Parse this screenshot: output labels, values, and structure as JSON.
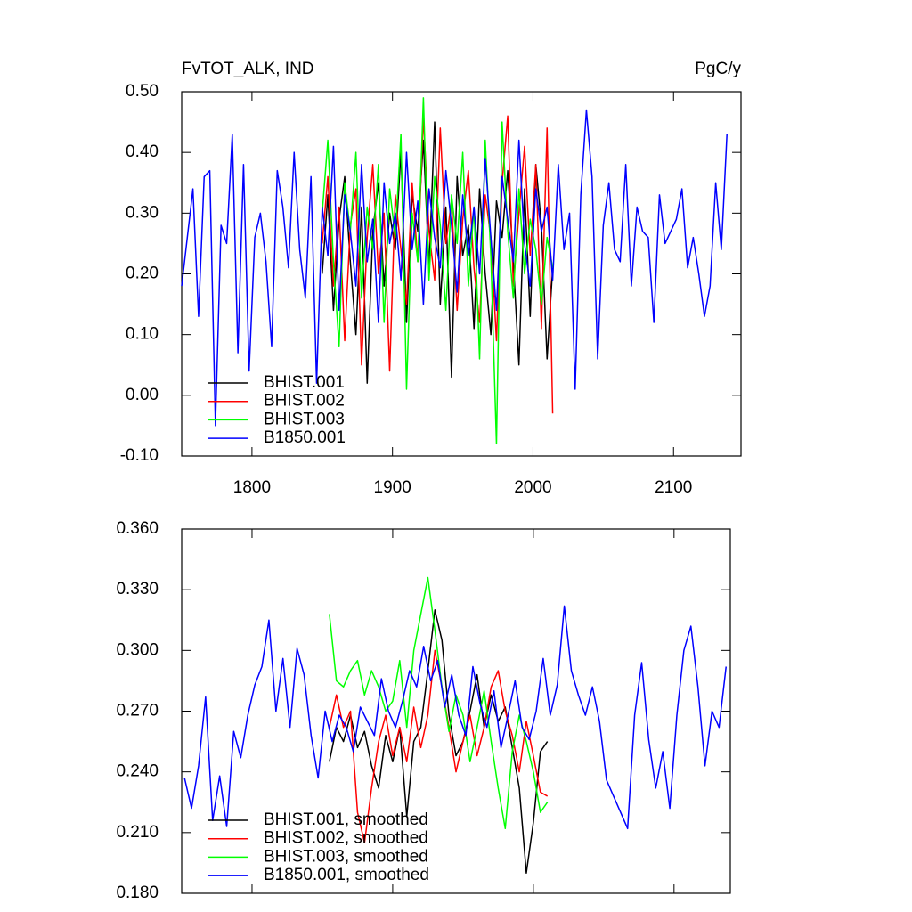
{
  "chart_data": [
    {
      "type": "line",
      "title": "FvTOT_ALK, IND",
      "units_label": "PgC/y",
      "xlim": [
        1750,
        2148
      ],
      "xticks": [
        1800,
        1900,
        2000,
        2100
      ],
      "show_xtick_labels": true,
      "ylim": [
        -0.1,
        0.5
      ],
      "yticks": [
        {
          "value": -0.1,
          "label": "-0.10"
        },
        {
          "value": 0,
          "label": "0.00"
        },
        {
          "value": 0.1,
          "label": "0.10"
        },
        {
          "value": 0.2,
          "label": "0.20"
        },
        {
          "value": 0.3,
          "label": "0.30"
        },
        {
          "value": 0.4,
          "label": "0.40"
        },
        {
          "value": 0.5,
          "label": "0.50"
        }
      ],
      "legend": "lower left",
      "series": [
        {
          "name": "BHIST.001",
          "color": "#000000",
          "x": [
            1850,
            1854,
            1858,
            1862,
            1866,
            1870,
            1874,
            1878,
            1882,
            1886,
            1890,
            1894,
            1898,
            1902,
            1906,
            1910,
            1914,
            1918,
            1922,
            1926,
            1930,
            1934,
            1938,
            1942,
            1946,
            1950,
            1954,
            1958,
            1962,
            1966,
            1970,
            1974,
            1978,
            1982,
            1986,
            1990,
            1994,
            1998,
            2002,
            2006,
            2010,
            2014
          ],
          "values": [
            0.2,
            0.33,
            0.14,
            0.29,
            0.36,
            0.22,
            0.1,
            0.31,
            0.02,
            0.27,
            0.35,
            0.18,
            0.3,
            0.24,
            0.4,
            0.12,
            0.33,
            0.27,
            0.42,
            0.21,
            0.45,
            0.15,
            0.31,
            0.03,
            0.36,
            0.23,
            0.28,
            0.11,
            0.34,
            0.2,
            0.1,
            0.32,
            0.26,
            0.37,
            0.22,
            0.05,
            0.34,
            0.13,
            0.38,
            0.28,
            0.06,
            0.21
          ]
        },
        {
          "name": "BHIST.002",
          "color": "#ff0000",
          "x": [
            1850,
            1854,
            1858,
            1862,
            1866,
            1870,
            1874,
            1878,
            1882,
            1886,
            1890,
            1894,
            1898,
            1902,
            1906,
            1910,
            1914,
            1918,
            1922,
            1926,
            1930,
            1934,
            1938,
            1942,
            1946,
            1950,
            1954,
            1958,
            1962,
            1966,
            1970,
            1974,
            1978,
            1982,
            1986,
            1990,
            1994,
            1998,
            2002,
            2006,
            2010,
            2014
          ],
          "values": [
            0.25,
            0.36,
            0.18,
            0.31,
            0.09,
            0.28,
            0.34,
            0.05,
            0.26,
            0.38,
            0.2,
            0.3,
            0.04,
            0.33,
            0.24,
            0.15,
            0.35,
            0.22,
            0.46,
            0.27,
            0.19,
            0.44,
            0.25,
            0.32,
            0.14,
            0.29,
            0.37,
            0.21,
            0.12,
            0.33,
            0.26,
            0.09,
            0.35,
            0.46,
            0.18,
            0.3,
            0.41,
            0.23,
            0.38,
            0.11,
            0.44,
            -0.03
          ]
        },
        {
          "name": "BHIST.003",
          "color": "#00ff00",
          "x": [
            1850,
            1854,
            1858,
            1862,
            1866,
            1870,
            1874,
            1878,
            1882,
            1886,
            1890,
            1894,
            1898,
            1902,
            1906,
            1910,
            1914,
            1918,
            1922,
            1926,
            1930,
            1934,
            1938,
            1942,
            1946,
            1950,
            1954,
            1958,
            1962,
            1966,
            1970,
            1974,
            1978,
            1982,
            1986,
            1990,
            1994,
            1998,
            2002,
            2006,
            2010,
            2014
          ],
          "values": [
            0.3,
            0.42,
            0.22,
            0.08,
            0.35,
            0.27,
            0.4,
            0.16,
            0.31,
            0.24,
            0.38,
            0.12,
            0.34,
            0.26,
            0.43,
            0.01,
            0.3,
            0.22,
            0.49,
            0.19,
            0.36,
            0.28,
            0.14,
            0.33,
            0.25,
            0.4,
            0.18,
            0.31,
            0.06,
            0.42,
            0.23,
            -0.08,
            0.45,
            0.27,
            0.16,
            0.34,
            0.2,
            0.29,
            0.24,
            0.15,
            0.26,
            0.21
          ]
        },
        {
          "name": "B1850.001",
          "color": "#0000ff",
          "x": [
            1750,
            1754,
            1758,
            1762,
            1766,
            1770,
            1774,
            1778,
            1782,
            1786,
            1790,
            1794,
            1798,
            1802,
            1806,
            1810,
            1814,
            1818,
            1822,
            1826,
            1830,
            1834,
            1838,
            1842,
            1846,
            1850,
            1854,
            1858,
            1862,
            1866,
            1870,
            1874,
            1878,
            1882,
            1886,
            1890,
            1894,
            1898,
            1902,
            1906,
            1910,
            1914,
            1918,
            1922,
            1926,
            1930,
            1934,
            1938,
            1942,
            1946,
            1950,
            1954,
            1958,
            1962,
            1966,
            1970,
            1974,
            1978,
            1982,
            1986,
            1990,
            1994,
            1998,
            2002,
            2006,
            2010,
            2014,
            2018,
            2022,
            2026,
            2030,
            2034,
            2038,
            2042,
            2046,
            2050,
            2054,
            2058,
            2062,
            2066,
            2070,
            2074,
            2078,
            2082,
            2086,
            2090,
            2094,
            2098,
            2102,
            2106,
            2110,
            2114,
            2118,
            2122,
            2126,
            2130,
            2134,
            2138
          ],
          "values": [
            0.18,
            0.26,
            0.34,
            0.13,
            0.36,
            0.37,
            -0.05,
            0.28,
            0.25,
            0.43,
            0.07,
            0.38,
            0.04,
            0.26,
            0.3,
            0.22,
            0.08,
            0.37,
            0.31,
            0.21,
            0.4,
            0.24,
            0.16,
            0.36,
            0.02,
            0.31,
            0.23,
            0.41,
            0.14,
            0.33,
            0.27,
            0.18,
            0.38,
            0.22,
            0.29,
            0.12,
            0.35,
            0.25,
            0.3,
            0.19,
            0.4,
            0.24,
            0.32,
            0.15,
            0.34,
            0.26,
            0.21,
            0.37,
            0.28,
            0.17,
            0.33,
            0.23,
            0.31,
            0.2,
            0.39,
            0.26,
            0.14,
            0.36,
            0.29,
            0.22,
            0.42,
            0.25,
            0.18,
            0.34,
            0.27,
            0.31,
            0.19,
            0.38,
            0.24,
            0.3,
            0.01,
            0.33,
            0.47,
            0.36,
            0.06,
            0.28,
            0.35,
            0.24,
            0.22,
            0.38,
            0.18,
            0.31,
            0.27,
            0.26,
            0.12,
            0.33,
            0.25,
            0.27,
            0.29,
            0.34,
            0.21,
            0.26,
            0.2,
            0.13,
            0.18,
            0.35,
            0.24,
            0.43
          ]
        }
      ]
    },
    {
      "type": "line",
      "xlim": [
        1750,
        2140
      ],
      "xticks": [
        1800,
        1900,
        2000,
        2100
      ],
      "show_xtick_labels": false,
      "ylim": [
        0.18,
        0.36
      ],
      "yticks": [
        {
          "value": 0.18,
          "label": "0.180"
        },
        {
          "value": 0.21,
          "label": "0.210"
        },
        {
          "value": 0.24,
          "label": "0.240"
        },
        {
          "value": 0.27,
          "label": "0.270"
        },
        {
          "value": 0.3,
          "label": "0.300"
        },
        {
          "value": 0.33,
          "label": "0.330"
        },
        {
          "value": 0.36,
          "label": "0.360"
        }
      ],
      "legend": "lower left",
      "series": [
        {
          "name": "BHIST.001, smoothed",
          "color": "#000000",
          "x": [
            1855,
            1860,
            1865,
            1870,
            1875,
            1880,
            1885,
            1890,
            1895,
            1900,
            1905,
            1910,
            1915,
            1920,
            1925,
            1930,
            1935,
            1940,
            1945,
            1950,
            1955,
            1960,
            1965,
            1970,
            1975,
            1980,
            1985,
            1990,
            1995,
            2000,
            2005,
            2010
          ],
          "values": [
            0.245,
            0.262,
            0.255,
            0.268,
            0.252,
            0.26,
            0.243,
            0.232,
            0.258,
            0.245,
            0.262,
            0.218,
            0.255,
            0.262,
            0.29,
            0.32,
            0.305,
            0.268,
            0.248,
            0.255,
            0.27,
            0.288,
            0.262,
            0.278,
            0.265,
            0.272,
            0.252,
            0.232,
            0.19,
            0.215,
            0.25,
            0.255
          ]
        },
        {
          "name": "BHIST.002, smoothed",
          "color": "#ff0000",
          "x": [
            1855,
            1860,
            1865,
            1870,
            1875,
            1880,
            1885,
            1890,
            1895,
            1900,
            1905,
            1910,
            1915,
            1920,
            1925,
            1930,
            1935,
            1940,
            1945,
            1950,
            1955,
            1960,
            1965,
            1970,
            1975,
            1980,
            1985,
            1990,
            1995,
            2000,
            2005,
            2010
          ],
          "values": [
            0.262,
            0.278,
            0.262,
            0.27,
            0.22,
            0.205,
            0.232,
            0.255,
            0.268,
            0.248,
            0.262,
            0.245,
            0.272,
            0.252,
            0.268,
            0.3,
            0.282,
            0.262,
            0.24,
            0.255,
            0.268,
            0.248,
            0.262,
            0.282,
            0.29,
            0.27,
            0.258,
            0.24,
            0.265,
            0.248,
            0.23,
            0.228
          ]
        },
        {
          "name": "BHIST.003, smoothed",
          "color": "#00ff00",
          "x": [
            1855,
            1860,
            1865,
            1870,
            1875,
            1880,
            1885,
            1890,
            1895,
            1900,
            1905,
            1910,
            1915,
            1920,
            1925,
            1930,
            1935,
            1940,
            1945,
            1950,
            1955,
            1960,
            1965,
            1970,
            1975,
            1980,
            1985,
            1990,
            1995,
            2000,
            2005,
            2010
          ],
          "values": [
            0.318,
            0.285,
            0.282,
            0.29,
            0.295,
            0.278,
            0.29,
            0.282,
            0.27,
            0.275,
            0.295,
            0.262,
            0.3,
            0.318,
            0.336,
            0.31,
            0.282,
            0.26,
            0.278,
            0.268,
            0.245,
            0.262,
            0.28,
            0.255,
            0.232,
            0.212,
            0.25,
            0.268,
            0.255,
            0.24,
            0.22,
            0.225
          ]
        },
        {
          "name": "B1850.001, smoothed",
          "color": "#0000ff",
          "x": [
            1752,
            1757,
            1762,
            1767,
            1772,
            1777,
            1782,
            1787,
            1792,
            1797,
            1802,
            1807,
            1812,
            1817,
            1822,
            1827,
            1832,
            1837,
            1842,
            1847,
            1852,
            1857,
            1862,
            1867,
            1872,
            1877,
            1882,
            1887,
            1892,
            1897,
            1902,
            1907,
            1912,
            1917,
            1922,
            1927,
            1932,
            1937,
            1942,
            1947,
            1952,
            1957,
            1962,
            1967,
            1972,
            1977,
            1982,
            1987,
            1992,
            1997,
            2002,
            2007,
            2012,
            2017,
            2022,
            2027,
            2032,
            2037,
            2042,
            2047,
            2052,
            2057,
            2062,
            2067,
            2072,
            2077,
            2082,
            2087,
            2092,
            2097,
            2102,
            2107,
            2112,
            2117,
            2122,
            2127,
            2132,
            2137
          ],
          "values": [
            0.237,
            0.222,
            0.243,
            0.277,
            0.216,
            0.238,
            0.213,
            0.26,
            0.247,
            0.268,
            0.283,
            0.292,
            0.315,
            0.27,
            0.296,
            0.262,
            0.301,
            0.288,
            0.258,
            0.237,
            0.27,
            0.255,
            0.268,
            0.262,
            0.25,
            0.272,
            0.265,
            0.258,
            0.286,
            0.27,
            0.262,
            0.275,
            0.29,
            0.282,
            0.302,
            0.285,
            0.295,
            0.272,
            0.288,
            0.268,
            0.258,
            0.292,
            0.274,
            0.262,
            0.28,
            0.252,
            0.268,
            0.285,
            0.262,
            0.256,
            0.27,
            0.296,
            0.268,
            0.283,
            0.322,
            0.29,
            0.278,
            0.268,
            0.282,
            0.265,
            0.236,
            0.228,
            0.22,
            0.212,
            0.268,
            0.294,
            0.256,
            0.232,
            0.25,
            0.222,
            0.268,
            0.3,
            0.312,
            0.282,
            0.243,
            0.27,
            0.262,
            0.292
          ]
        }
      ]
    }
  ]
}
